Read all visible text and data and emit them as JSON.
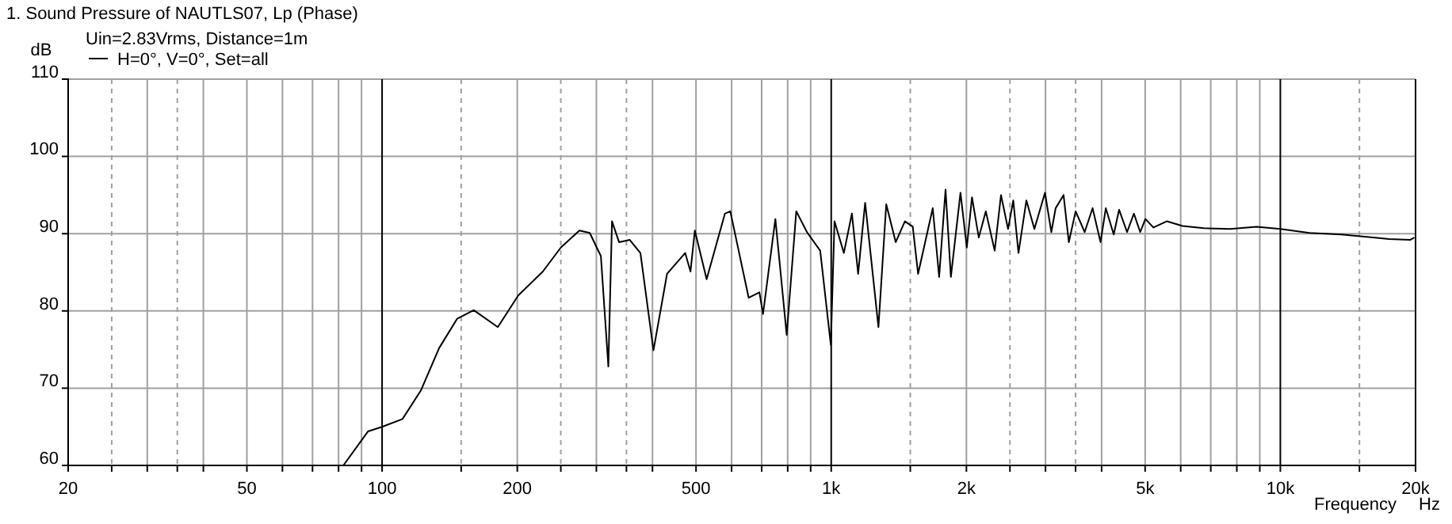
{
  "chart_data": {
    "type": "line",
    "title": "1. Sound Pressure of NAUTLS07, Lp (Phase)",
    "subtitle": "Uin=2.83Vrms, Distance=1m",
    "xlabel": "Frequency",
    "ylabel": "dB",
    "annotations": [
      "Hz"
    ],
    "log": "x",
    "grid": true,
    "legend": "top left",
    "xlim": [
      20,
      20000
    ],
    "ylim": [
      60,
      110
    ],
    "xticks": [
      20,
      {
        "value": 25,
        "label": null
      },
      {
        "value": 30,
        "label": null
      },
      {
        "value": 35,
        "label": null
      },
      {
        "value": 40,
        "label": null
      },
      50,
      {
        "value": 60,
        "label": null
      },
      {
        "value": 70,
        "label": null
      },
      {
        "value": 80,
        "label": null
      },
      {
        "value": 90,
        "label": null
      },
      100,
      {
        "value": 150,
        "label": null
      },
      200,
      {
        "value": 250,
        "label": null
      },
      {
        "value": 300,
        "label": null
      },
      {
        "value": 350,
        "label": null
      },
      {
        "value": 400,
        "label": null
      },
      500,
      {
        "value": 600,
        "label": null
      },
      {
        "value": 700,
        "label": null
      },
      {
        "value": 800,
        "label": null
      },
      {
        "value": 900,
        "label": null
      },
      {
        "value": 1000,
        "label": "1k"
      },
      {
        "value": 1500,
        "label": null
      },
      {
        "value": 2000,
        "label": "2k"
      },
      {
        "value": 2500,
        "label": null
      },
      {
        "value": 3000,
        "label": null
      },
      {
        "value": 3500,
        "label": null
      },
      {
        "value": 4000,
        "label": null
      },
      {
        "value": 5000,
        "label": "5k"
      },
      {
        "value": 6000,
        "label": null
      },
      {
        "value": 7000,
        "label": null
      },
      {
        "value": 8000,
        "label": null
      },
      {
        "value": 9000,
        "label": null
      },
      {
        "value": 10000,
        "label": "10k"
      },
      {
        "value": 15000,
        "label": null
      },
      {
        "value": 20000,
        "label": "20k"
      }
    ],
    "yticks": [
      60,
      70,
      80,
      90,
      100,
      110
    ],
    "series": [
      {
        "name": "H=0°, V=0°, Set=all",
        "color": "#000000",
        "x": [
          20,
          82,
          93,
          100,
          111,
          122,
          134,
          147,
          160,
          181,
          201,
          228,
          250,
          275,
          290,
          307,
          319,
          325,
          337,
          356,
          376,
          402,
          431,
          473,
          486,
          497,
          528,
          580,
          596,
          655,
          692,
          705,
          751,
          796,
          836,
          883,
          945,
          998,
          1017,
          1067,
          1112,
          1148,
          1190,
          1274,
          1326,
          1392,
          1459,
          1519,
          1561,
          1683,
          1739,
          1797,
          1847,
          1940,
          2004,
          2058,
          2131,
          2209,
          2312,
          2388,
          2476,
          2543,
          2612,
          2720,
          2834,
          2992,
          3091,
          3160,
          3291,
          3381,
          3501,
          3667,
          3819,
          3978,
          4087,
          4256,
          4375,
          4557,
          4720,
          4875,
          5007,
          5216,
          5585,
          6058,
          6749,
          7731,
          8851,
          10000,
          11610,
          13670,
          16090,
          17450,
          19450,
          19870
        ],
        "values": [
          60,
          60,
          64.4,
          65,
          66,
          69.7,
          75.2,
          79,
          80.1,
          77.9,
          82,
          85.1,
          88.2,
          90.4,
          90.1,
          87.1,
          72.8,
          91.6,
          88.9,
          89.2,
          87.5,
          74.9,
          84.8,
          87.5,
          85.1,
          90.4,
          84.1,
          92.6,
          92.9,
          81.7,
          82.4,
          79.6,
          91.9,
          76.9,
          92.9,
          90.2,
          87.8,
          75.6,
          91.6,
          87.5,
          92.6,
          84.8,
          94,
          77.9,
          93.8,
          88.9,
          91.6,
          90.9,
          84.8,
          93.3,
          84.4,
          95.7,
          84.4,
          95.3,
          88.2,
          94.7,
          89.5,
          92.9,
          87.8,
          95,
          90.6,
          94.3,
          87.5,
          94.3,
          90.6,
          95.3,
          90.2,
          93.3,
          95,
          88.9,
          92.9,
          90.2,
          93.3,
          88.9,
          93.3,
          89.9,
          93.1,
          90.2,
          92.6,
          90.2,
          91.9,
          90.8,
          91.6,
          91,
          90.7,
          90.6,
          90.9,
          90.6,
          90.1,
          89.9,
          89.5,
          89.3,
          89.2,
          89.5
        ]
      }
    ]
  }
}
